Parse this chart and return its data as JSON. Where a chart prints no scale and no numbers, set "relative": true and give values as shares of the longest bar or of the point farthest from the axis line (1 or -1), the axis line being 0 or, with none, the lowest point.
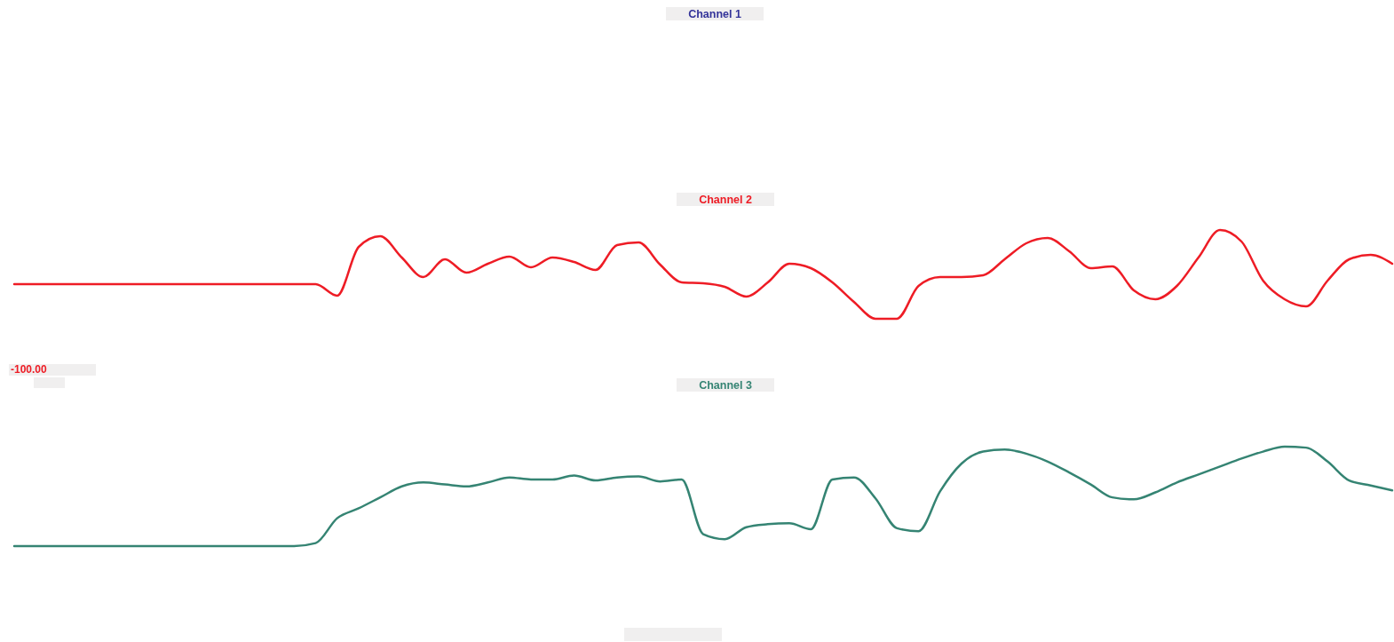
{
  "chart_data": [
    {
      "type": "other",
      "title": "Channel 1"
    },
    {
      "type": "line",
      "title": "Channel 2",
      "relative": true,
      "annotations": [
        "-100.00"
      ],
      "categories": [
        null,
        null,
        null,
        null,
        null,
        null,
        null,
        null,
        null,
        null,
        null,
        null,
        null,
        null,
        null,
        null,
        null,
        null,
        null,
        null,
        null,
        null,
        null,
        null,
        null,
        null,
        null,
        null,
        null,
        null,
        null,
        null,
        null,
        null,
        null,
        null,
        null,
        null,
        null,
        null,
        null,
        null,
        null,
        null,
        null,
        null,
        null,
        null,
        null,
        null,
        null,
        null,
        null,
        null,
        null,
        null,
        null,
        null,
        null,
        null,
        null,
        null,
        null,
        null,
        null
      ],
      "series": [
        {
          "color": "#ee1c25",
          "values": [
            0.39,
            0.39,
            0.39,
            0.39,
            0.39,
            0.39,
            0.39,
            0.39,
            0.39,
            0.39,
            0.39,
            0.39,
            0.39,
            0.39,
            0.39,
            0.26,
            0.81,
            0.93,
            0.69,
            0.47,
            0.67,
            0.52,
            0.62,
            0.7,
            0.58,
            0.69,
            0.64,
            0.55,
            0.83,
            0.86,
            0.61,
            0.41,
            0.4,
            0.36,
            0.25,
            0.41,
            0.62,
            0.57,
            0.41,
            0.19,
            0,
            0,
            0.37,
            0.47,
            0.47,
            0.49,
            0.67,
            0.85,
            0.91,
            0.76,
            0.57,
            0.59,
            0.32,
            0.22,
            0.37,
            0.69,
            1,
            0.87,
            0.43,
            0.22,
            0.14,
            0.43,
            0.67,
            0.72,
            0.62
          ]
        }
      ]
    },
    {
      "type": "line",
      "title": "Channel 3",
      "relative": true,
      "categories": [
        null,
        null,
        null,
        null,
        null,
        null,
        null,
        null,
        null,
        null,
        null,
        null,
        null,
        null,
        null,
        null,
        null,
        null,
        null,
        null,
        null,
        null,
        null,
        null,
        null,
        null,
        null,
        null,
        null,
        null,
        null,
        null,
        null,
        null,
        null,
        null,
        null,
        null,
        null,
        null,
        null,
        null,
        null,
        null,
        null,
        null,
        null,
        null,
        null,
        null,
        null,
        null,
        null,
        null,
        null,
        null,
        null,
        null,
        null,
        null,
        null,
        null,
        null,
        null,
        null
      ],
      "series": [
        {
          "color": "#358473",
          "values": [
            0,
            0,
            0,
            0,
            0,
            0,
            0,
            0,
            0,
            0,
            0,
            0,
            0,
            0,
            0.03,
            0.28,
            0.38,
            0.49,
            0.6,
            0.64,
            0.62,
            0.6,
            0.64,
            0.69,
            0.67,
            0.67,
            0.71,
            0.66,
            0.69,
            0.7,
            0.65,
            0.67,
            0.12,
            0.07,
            0.19,
            0.22,
            0.23,
            0.17,
            0.67,
            0.69,
            0.48,
            0.18,
            0.15,
            0.55,
            0.83,
            0.95,
            0.97,
            0.93,
            0.85,
            0.74,
            0.62,
            0.49,
            0.47,
            0.54,
            0.64,
            0.72,
            0.8,
            0.88,
            0.95,
            1,
            0.99,
            0.85,
            0.66,
            0.61,
            0.56
          ]
        }
      ]
    }
  ]
}
